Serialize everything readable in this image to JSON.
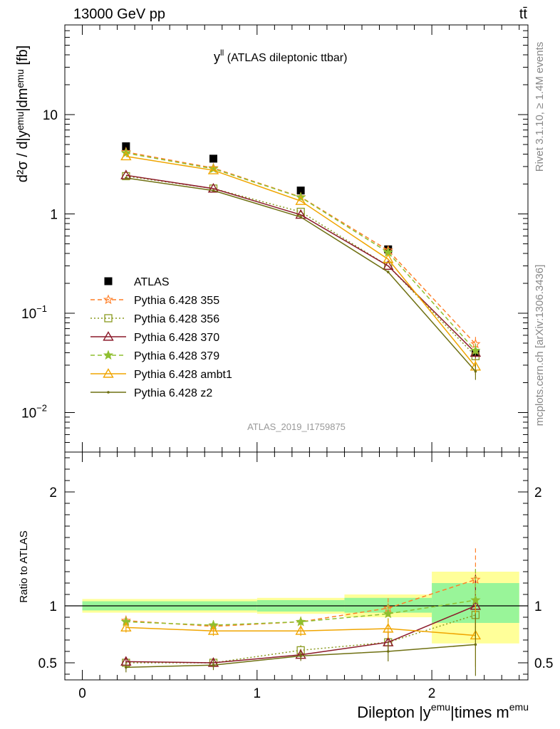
{
  "header": {
    "left": "13000 GeV pp",
    "right": "tt̄"
  },
  "side_texts": {
    "rivet": "Rivet 3.1.10, ≥ 1.4M events",
    "mcplots": "mcplots.cern.ch [arXiv:1306.3436]"
  },
  "chart_data": [
    {
      "type": "line",
      "panel": "main",
      "title": "yˡˡ (ATLAS dileptonic ttbar)",
      "title_main": "y",
      "title_sup": "ll",
      "title_rest": " (ATLAS dileptonic ttbar)",
      "ylabel": "d²σ / d|yᵉᵐᵘ|dmᵉᵐᵘ [fb]",
      "yscale": "log",
      "ylim": [
        0.004,
        80
      ],
      "xlim": [
        -0.1,
        2.55
      ],
      "y_ticks": [
        {
          "value": 10,
          "label": "10"
        },
        {
          "value": 1,
          "label": "1"
        },
        {
          "value": 0.1,
          "label": "10",
          "sup": "−1"
        },
        {
          "value": 0.01,
          "label": "10",
          "sup": "−2"
        }
      ],
      "analysis_tag": "ATLAS_2019_I1759875",
      "legend_position": "left",
      "x": [
        0.25,
        0.75,
        1.25,
        1.75,
        2.25
      ],
      "series": [
        {
          "name": "ATLAS",
          "color": "#000000",
          "marker": "square-filled",
          "line": "none",
          "values": [
            4.8,
            3.6,
            1.72,
            0.44,
            0.04
          ]
        },
        {
          "name": "Pythia 6.428 355",
          "color": "#ff7f27",
          "marker": "star-open",
          "line": "dashed",
          "values": [
            4.2,
            2.9,
            1.48,
            0.43,
            0.049
          ]
        },
        {
          "name": "Pythia 6.428 356",
          "color": "#8a9a1f",
          "marker": "square-open",
          "line": "dotted",
          "values": [
            2.4,
            1.8,
            1.05,
            0.3,
            0.037
          ]
        },
        {
          "name": "Pythia 6.428 370",
          "color": "#8b1a2a",
          "marker": "triangle-open",
          "line": "solid",
          "values": [
            2.45,
            1.8,
            0.98,
            0.3,
            0.04
          ]
        },
        {
          "name": "Pythia 6.428 379",
          "color": "#8fbf30",
          "marker": "star-filled",
          "line": "dashed",
          "values": [
            4.1,
            2.85,
            1.47,
            0.41,
            0.042
          ]
        },
        {
          "name": "Pythia 6.428 ambt1",
          "color": "#f0a500",
          "marker": "triangle-open",
          "line": "solid",
          "values": [
            3.8,
            2.75,
            1.35,
            0.35,
            0.029
          ]
        },
        {
          "name": "Pythia 6.428 z2",
          "color": "#6f7012",
          "marker": "dot",
          "line": "solid",
          "values": [
            2.3,
            1.72,
            0.93,
            0.26,
            0.026
          ]
        }
      ]
    },
    {
      "type": "line",
      "panel": "ratio",
      "ylabel": "Ratio to ATLAS",
      "xlabel": "Dilepton |yᵉᵐᵘ|times mᵉᵐᵘ",
      "xlabel_parts": [
        "Dilepton |y",
        "emu",
        "|times m",
        "emu"
      ],
      "ylim": [
        0.35,
        2.35
      ],
      "xlim": [
        -0.1,
        2.55
      ],
      "x_ticks": [
        0,
        1,
        2
      ],
      "y_ticks": [
        0.5,
        1,
        2
      ],
      "uncertainty_bands": [
        {
          "x": [
            -0.0,
            1.0
          ],
          "inner": [
            0.96,
            1.04
          ],
          "outer": [
            0.94,
            1.06
          ]
        },
        {
          "x": [
            1.0,
            1.5
          ],
          "inner": [
            0.95,
            1.05
          ],
          "outer": [
            0.93,
            1.07
          ]
        },
        {
          "x": [
            1.5,
            2.0
          ],
          "inner": [
            0.94,
            1.07
          ],
          "outer": [
            0.9,
            1.1
          ]
        },
        {
          "x": [
            2.0,
            2.5
          ],
          "inner": [
            0.85,
            1.2
          ],
          "outer": [
            0.67,
            1.3
          ]
        }
      ],
      "x": [
        0.25,
        0.75,
        1.25,
        1.75,
        2.25
      ],
      "series": [
        {
          "name": "Pythia 6.428 355",
          "color": "#ff7f27",
          "marker": "star-open",
          "line": "dashed",
          "values": [
            0.87,
            0.82,
            0.86,
            0.98,
            1.23
          ]
        },
        {
          "name": "Pythia 6.428 356",
          "color": "#8a9a1f",
          "marker": "square-open",
          "line": "dotted",
          "values": [
            0.5,
            0.5,
            0.61,
            0.68,
            0.92
          ]
        },
        {
          "name": "Pythia 6.428 370",
          "color": "#8b1a2a",
          "marker": "triangle-open",
          "line": "solid",
          "values": [
            0.51,
            0.5,
            0.57,
            0.68,
            1.0
          ]
        },
        {
          "name": "Pythia 6.428 379",
          "color": "#8fbf30",
          "marker": "star-filled",
          "line": "dashed",
          "values": [
            0.86,
            0.83,
            0.86,
            0.93,
            1.05
          ]
        },
        {
          "name": "Pythia 6.428 ambt1",
          "color": "#f0a500",
          "marker": "triangle-open",
          "line": "solid",
          "values": [
            0.81,
            0.78,
            0.78,
            0.8,
            0.74
          ]
        },
        {
          "name": "Pythia 6.428 z2",
          "color": "#6f7012",
          "marker": "dot",
          "line": "solid",
          "values": [
            0.46,
            0.48,
            0.56,
            0.6,
            0.66
          ]
        }
      ]
    }
  ]
}
